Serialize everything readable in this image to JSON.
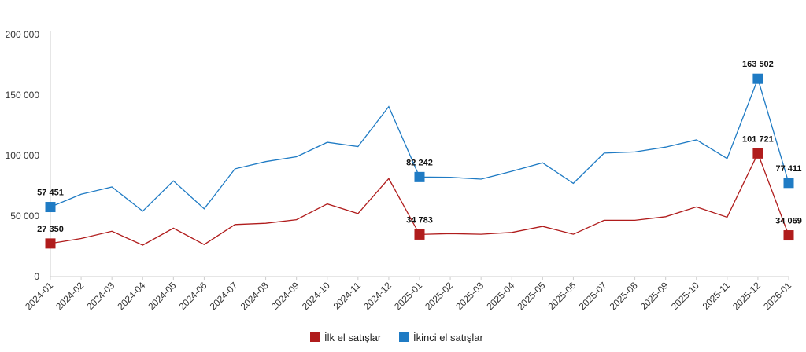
{
  "chart_data": {
    "type": "line",
    "title": "",
    "xlabel": "",
    "ylabel": "",
    "ylim": [
      0,
      200000
    ],
    "yticks": [
      0,
      50000,
      100000,
      150000,
      200000
    ],
    "ytick_labels": [
      "0",
      "50 000",
      "100 000",
      "150 000",
      "200 000"
    ],
    "grid": false,
    "legend_position": "bottom-center",
    "categories": [
      "2024-01",
      "2024-02",
      "2024-03",
      "2024-04",
      "2024-05",
      "2024-06",
      "2024-07",
      "2024-08",
      "2024-09",
      "2024-10",
      "2024-11",
      "2024-12",
      "2025-01",
      "2025-02",
      "2025-03",
      "2025-04",
      "2025-05",
      "2025-06",
      "2025-07",
      "2025-08",
      "2025-09",
      "2025-10",
      "2025-11",
      "2025-12",
      "2026-01"
    ],
    "series": [
      {
        "name": "İlk el satışlar",
        "color": "#b01c1c",
        "values": [
          27350,
          31500,
          37500,
          26000,
          40000,
          26500,
          43000,
          44000,
          47000,
          60000,
          52000,
          81000,
          34783,
          35500,
          35000,
          36500,
          41500,
          35000,
          46500,
          46500,
          49500,
          57500,
          49000,
          101721,
          34069
        ]
      },
      {
        "name": "İkinci el satışlar",
        "color": "#1f7bc4",
        "values": [
          57451,
          68000,
          74000,
          54000,
          79000,
          56000,
          89000,
          95000,
          99000,
          111000,
          107500,
          140500,
          82242,
          82000,
          80500,
          87000,
          94000,
          77000,
          102000,
          103000,
          107000,
          113000,
          97500,
          163502,
          77411
        ]
      }
    ],
    "data_labels": [
      {
        "series": 0,
        "index": 0,
        "text": "27 350"
      },
      {
        "series": 0,
        "index": 12,
        "text": "34 783"
      },
      {
        "series": 0,
        "index": 23,
        "text": "101 721"
      },
      {
        "series": 0,
        "index": 24,
        "text": "34 069"
      },
      {
        "series": 1,
        "index": 0,
        "text": "57 451"
      },
      {
        "series": 1,
        "index": 12,
        "text": "82 242"
      },
      {
        "series": 1,
        "index": 23,
        "text": "163 502"
      },
      {
        "series": 1,
        "index": 24,
        "text": "77 411"
      }
    ]
  }
}
